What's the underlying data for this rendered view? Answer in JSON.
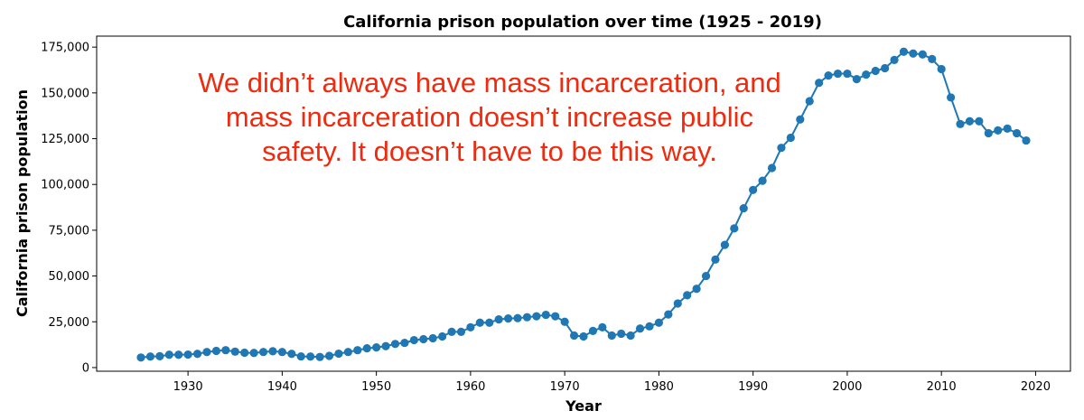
{
  "chart_data": {
    "type": "line",
    "title": "California prison population over time (1925 - 2019)",
    "xlabel": "Year",
    "ylabel": "California prison population",
    "xlim": [
      1920.3,
      2023.7
    ],
    "ylim": [
      -2000,
      181000
    ],
    "x_ticks": [
      1930,
      1940,
      1950,
      1960,
      1970,
      1980,
      1990,
      2000,
      2010,
      2020
    ],
    "x_tick_labels": [
      "1930",
      "1940",
      "1950",
      "1960",
      "1970",
      "1980",
      "1990",
      "2000",
      "2010",
      "2020"
    ],
    "y_ticks": [
      0,
      25000,
      50000,
      75000,
      100000,
      125000,
      150000,
      175000
    ],
    "y_tick_labels": [
      "0",
      "25,000",
      "50,000",
      "75,000",
      "100,000",
      "125,000",
      "150,000",
      "175,000"
    ],
    "grid": false,
    "series_color": "#1f77b4",
    "annotation": {
      "lines": [
        "We didn’t always have mass incarceration, and",
        "mass incarceration doesn’t increase public",
        "safety. It doesn’t have to be this way."
      ],
      "color": "#ee2a0f"
    },
    "series": [
      {
        "x": [
          1925,
          1926,
          1927,
          1928,
          1929,
          1930,
          1931,
          1932,
          1933,
          1934,
          1935,
          1936,
          1937,
          1938,
          1939,
          1940,
          1941,
          1942,
          1943,
          1944,
          1945,
          1946,
          1947,
          1948,
          1949,
          1950,
          1951,
          1952,
          1953,
          1954,
          1955,
          1956,
          1957,
          1958,
          1959,
          1960,
          1961,
          1962,
          1963,
          1964,
          1965,
          1966,
          1967,
          1968,
          1969,
          1970,
          1971,
          1972,
          1973,
          1974,
          1975,
          1976,
          1977,
          1978,
          1979,
          1980,
          1981,
          1982,
          1983,
          1984,
          1985,
          1986,
          1987,
          1988,
          1989,
          1990,
          1991,
          1992,
          1993,
          1994,
          1995,
          1996,
          1997,
          1998,
          1999,
          2000,
          2001,
          2002,
          2003,
          2004,
          2005,
          2006,
          2007,
          2008,
          2009,
          2010,
          2011,
          2012,
          2013,
          2014,
          2015,
          2016,
          2017,
          2018,
          2019
        ],
        "values": [
          5500,
          6000,
          6200,
          7000,
          7000,
          7100,
          7500,
          8500,
          9100,
          9500,
          8700,
          8100,
          8000,
          8500,
          8900,
          8500,
          7500,
          6100,
          6000,
          5800,
          6400,
          7600,
          8500,
          9500,
          10500,
          11000,
          11700,
          12900,
          13500,
          15000,
          15500,
          16000,
          17000,
          19500,
          19500,
          22000,
          24500,
          24500,
          26300,
          26800,
          27000,
          27500,
          28000,
          28800,
          28000,
          25000,
          17500,
          17000,
          20000,
          22000,
          17500,
          18500,
          17500,
          21300,
          22500,
          24500,
          29000,
          35000,
          39500,
          43000,
          50000,
          59000,
          67000,
          76000,
          87000,
          97000,
          102000,
          109000,
          120000,
          125500,
          135500,
          145500,
          155500,
          159500,
          160500,
          160500,
          157500,
          160000,
          162000,
          163500,
          168000,
          172500,
          171500,
          171000,
          168500,
          163000,
          147500,
          133000,
          134500,
          134500,
          128000,
          129500,
          130500,
          128000,
          124000
        ]
      }
    ]
  }
}
